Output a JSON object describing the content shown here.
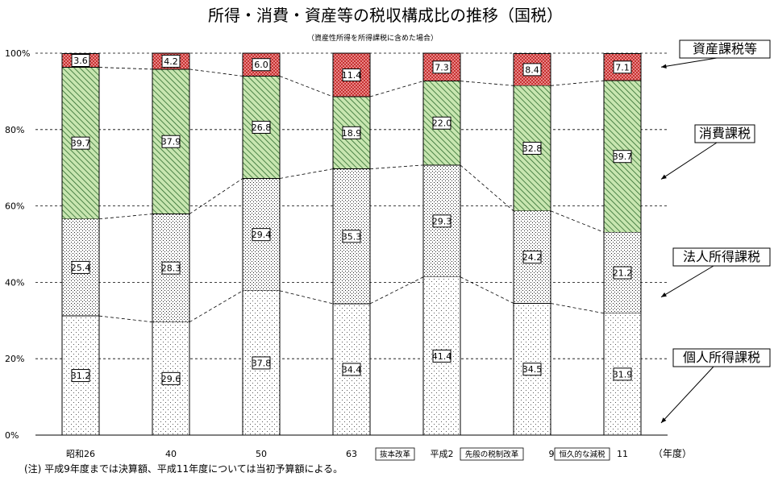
{
  "chart_data": {
    "type": "bar",
    "stacked": true,
    "title": "所得・消費・資産等の税収構成比の推移（国税）",
    "subtitle": "（資産性所得を所得課税に含めた場合）",
    "xlabel": "（年度）",
    "ylabel": "",
    "ylim": [
      0,
      100
    ],
    "yticks": [
      "0%",
      "20%",
      "40%",
      "60%",
      "80%",
      "100%"
    ],
    "grid": true,
    "categories": [
      "昭和26",
      "40",
      "50",
      "63",
      "平成2",
      "9",
      "11"
    ],
    "series": [
      {
        "name": "個人所得課税",
        "values": [
          31.2,
          29.6,
          37.8,
          34.4,
          41.4,
          34.5,
          31.9
        ],
        "color": "#ffffff",
        "pattern": "light-dots"
      },
      {
        "name": "法人所得課税",
        "values": [
          25.4,
          28.3,
          29.4,
          35.3,
          29.3,
          24.2,
          21.2
        ],
        "color": "#ffffff",
        "pattern": "dense-dots"
      },
      {
        "name": "消費課税",
        "values": [
          39.7,
          37.9,
          26.8,
          18.9,
          22.0,
          32.8,
          39.7
        ],
        "color": "#bfe0a8",
        "pattern": "diagonal-green"
      },
      {
        "name": "資産課税等",
        "values": [
          3.6,
          4.2,
          6.0,
          11.4,
          7.3,
          8.4,
          7.1
        ],
        "color": "#e88080",
        "pattern": "crosshatch-red"
      }
    ],
    "annotations": [
      {
        "label": "抜本改革",
        "after_category": "63"
      },
      {
        "label": "先般の税制改革",
        "after_category": "平成2"
      },
      {
        "label": "恒久的な減税",
        "after_category": "9"
      }
    ],
    "legend": "right",
    "note": "(注) 平成9年度までは決算額、平成11年度については当初予算額による。"
  }
}
